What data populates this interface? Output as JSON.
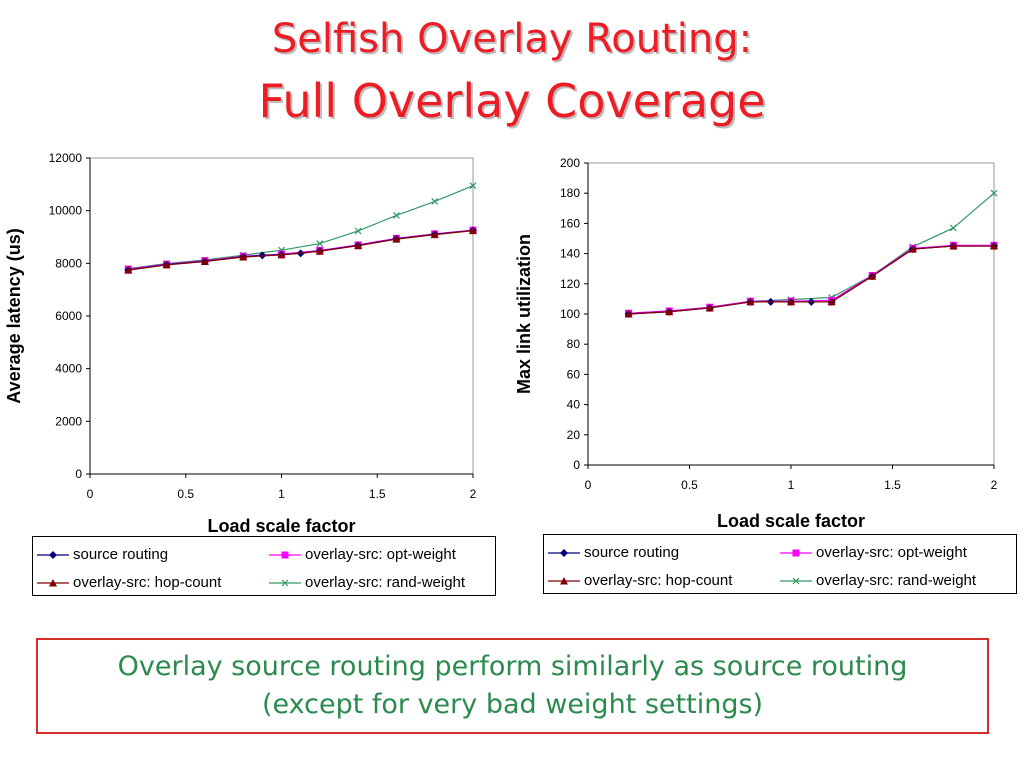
{
  "title": {
    "line1": "Selfish Overlay Routing:",
    "line2": "Full Overlay Coverage"
  },
  "caption": {
    "line1": "Overlay source routing perform similarly as source routing",
    "line2": "(except for very bad weight settings)"
  },
  "chart_data": [
    {
      "type": "line",
      "xlabel": "Load scale factor",
      "ylabel": "Average latency (us)",
      "xlim": [
        0,
        2
      ],
      "ylim": [
        0,
        12000
      ],
      "xticks": [
        "0",
        "0.5",
        "1",
        "1.5",
        "2"
      ],
      "yticks": [
        "0",
        "2000",
        "4000",
        "6000",
        "8000",
        "10000",
        "12000"
      ],
      "legend": "bottom",
      "series": [
        {
          "name": "source routing",
          "color": "#000080",
          "marker": "diamond",
          "x": [
            0.2,
            0.4,
            0.6,
            0.8,
            0.9,
            1.0,
            1.1,
            1.2,
            1.4,
            1.6,
            1.8,
            2.0
          ],
          "y": [
            7750,
            7950,
            8080,
            8250,
            8300,
            8330,
            8380,
            8470,
            8680,
            8930,
            9100,
            9250
          ]
        },
        {
          "name": "overlay-src: opt-weight",
          "color": "#ff00ff",
          "marker": "square",
          "x": [
            0.2,
            0.4,
            0.6,
            0.8,
            1.0,
            1.2,
            1.4,
            1.6,
            1.8,
            2.0
          ],
          "y": [
            7780,
            7970,
            8100,
            8270,
            8350,
            8490,
            8700,
            8950,
            9120,
            9260
          ]
        },
        {
          "name": "overlay-src: hop-count",
          "color": "#800000",
          "marker": "triangle",
          "x": [
            0.2,
            0.4,
            0.6,
            0.8,
            1.0,
            1.2,
            1.4,
            1.6,
            1.8,
            2.0
          ],
          "y": [
            7740,
            7940,
            8070,
            8240,
            8320,
            8460,
            8670,
            8920,
            9090,
            9240
          ]
        },
        {
          "name": "overlay-src: rand-weight",
          "color": "#339966",
          "marker": "x",
          "x": [
            0.2,
            0.4,
            0.6,
            0.8,
            1.0,
            1.2,
            1.4,
            1.6,
            1.8,
            2.0
          ],
          "y": [
            7800,
            7990,
            8130,
            8310,
            8500,
            8750,
            9230,
            9820,
            10350,
            10950
          ]
        }
      ]
    },
    {
      "type": "line",
      "xlabel": "Load scale factor",
      "ylabel": "Max link utilization",
      "xlim": [
        0,
        2
      ],
      "ylim": [
        0,
        200
      ],
      "xticks": [
        "0",
        "0.5",
        "1",
        "1.5",
        "2"
      ],
      "yticks": [
        "0",
        "20",
        "40",
        "60",
        "80",
        "100",
        "120",
        "140",
        "160",
        "180",
        "200"
      ],
      "legend": "bottom",
      "series": [
        {
          "name": "source routing",
          "color": "#000080",
          "marker": "diamond",
          "x": [
            0.2,
            0.4,
            0.6,
            0.8,
            0.9,
            1.0,
            1.1,
            1.2,
            1.4,
            1.6,
            1.8,
            2.0
          ],
          "y": [
            100,
            101.5,
            104,
            108,
            108,
            108,
            108,
            108,
            125,
            143,
            145,
            145
          ]
        },
        {
          "name": "overlay-src: opt-weight",
          "color": "#ff00ff",
          "marker": "square",
          "x": [
            0.2,
            0.4,
            0.6,
            0.8,
            1.0,
            1.2,
            1.4,
            1.6,
            1.8,
            2.0
          ],
          "y": [
            100.5,
            102,
            104.5,
            108.5,
            108.5,
            109,
            125.5,
            143.5,
            145.5,
            145.5
          ]
        },
        {
          "name": "overlay-src: hop-count",
          "color": "#800000",
          "marker": "triangle",
          "x": [
            0.2,
            0.4,
            0.6,
            0.8,
            1.0,
            1.2,
            1.4,
            1.6,
            1.8,
            2.0
          ],
          "y": [
            100,
            101.5,
            104,
            108,
            108,
            108,
            125,
            143,
            145,
            145
          ]
        },
        {
          "name": "overlay-src: rand-weight",
          "color": "#339966",
          "marker": "x",
          "x": [
            0.2,
            0.4,
            0.6,
            0.8,
            1.0,
            1.2,
            1.4,
            1.6,
            1.8,
            2.0
          ],
          "y": [
            100.5,
            102,
            104.5,
            108.5,
            109.5,
            111,
            125.5,
            144.5,
            157,
            180
          ]
        }
      ]
    }
  ]
}
